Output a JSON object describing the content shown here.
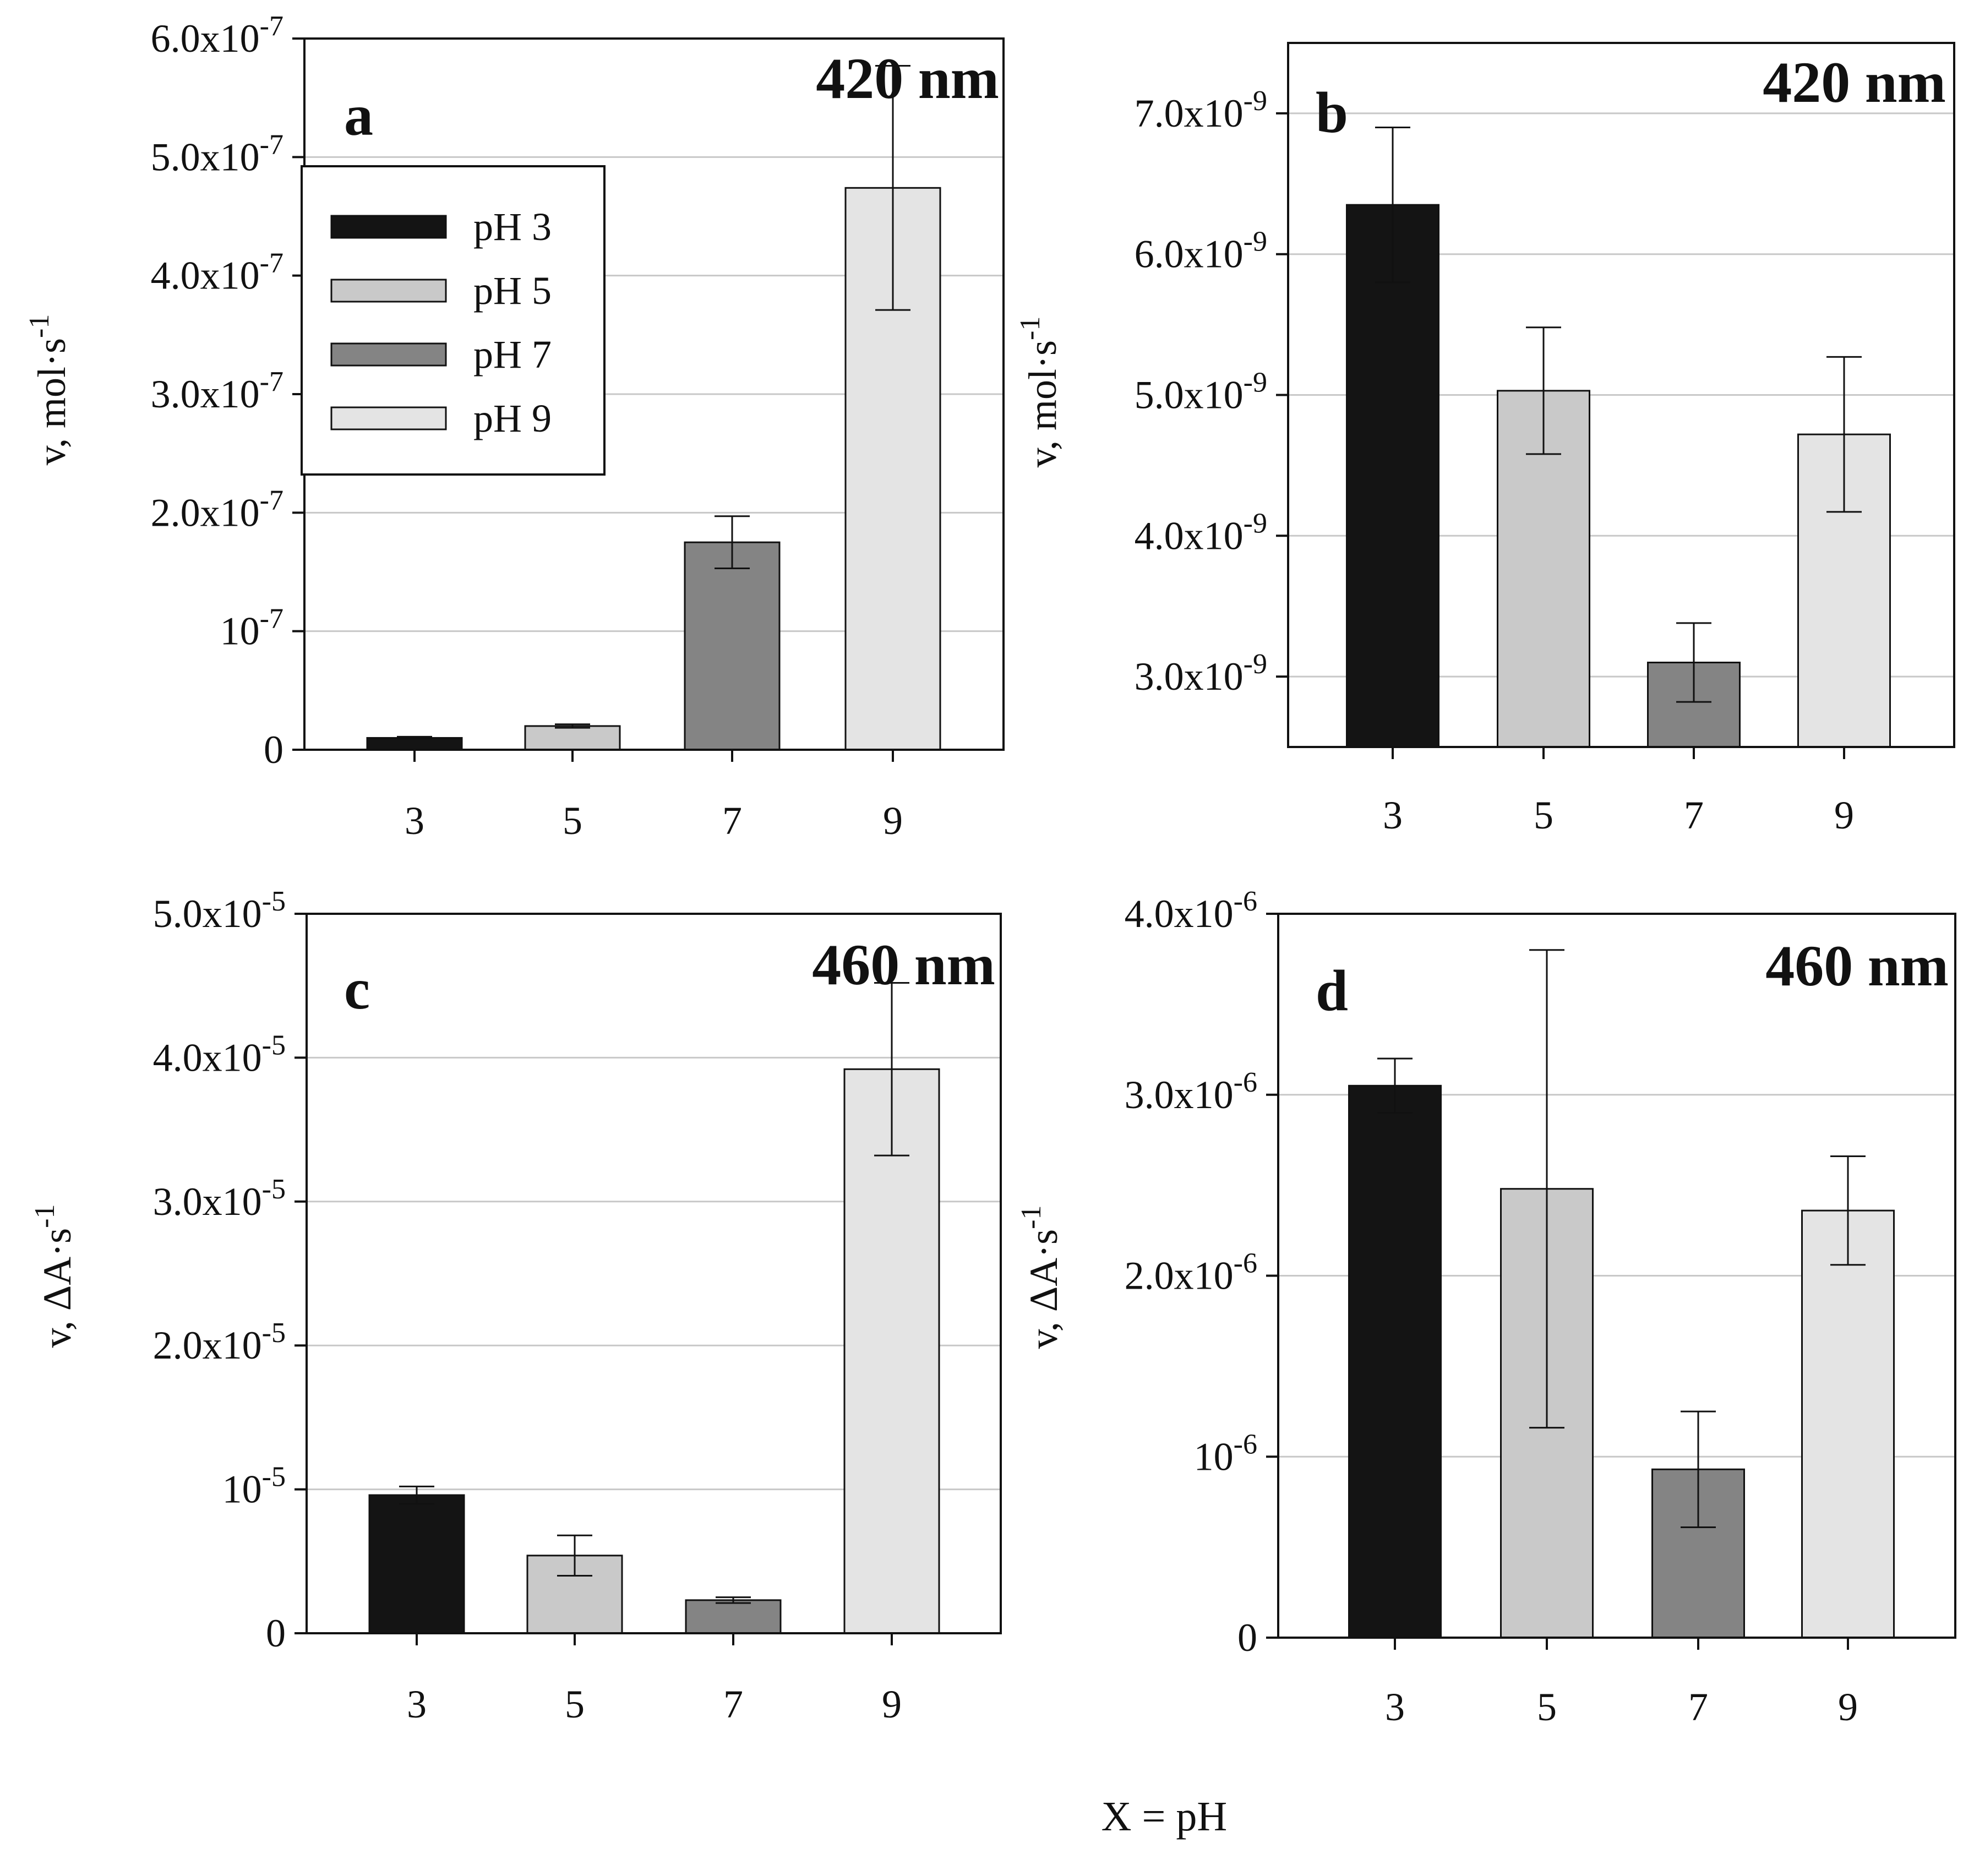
{
  "colors": {
    "pH 3": "#141414",
    "pH 5": "#c9c9c9",
    "pH 7": "#848484",
    "pH 9": "#e4e4e4",
    "grid": "#c8c8c8",
    "axis": "#111111"
  },
  "xlabel": "X = pH",
  "chart_data": [
    {
      "type": "bar",
      "panel": "a",
      "wavelength": "420 nm",
      "categories": [
        "3",
        "5",
        "7",
        "9"
      ],
      "values": [
        1e-08,
        2e-08,
        1.75e-07,
        4.74e-07
      ],
      "errors": [
        1e-09,
        1.5e-09,
        2.2e-08,
        1.03e-07
      ],
      "ylabel_main": "v, mol·s",
      "ylabel_sup": "-1",
      "ylim": [
        0,
        6e-07
      ],
      "yticks": [
        {
          "value": 0,
          "base": "0",
          "exp": ""
        },
        {
          "value": 1e-07,
          "base": "10",
          "exp": "-7"
        },
        {
          "value": 2e-07,
          "base": "2.0x10",
          "exp": "-7"
        },
        {
          "value": 3e-07,
          "base": "3.0x10",
          "exp": "-7"
        },
        {
          "value": 4e-07,
          "base": "4.0x10",
          "exp": "-7"
        },
        {
          "value": 5e-07,
          "base": "5.0x10",
          "exp": "-7"
        },
        {
          "value": 6e-07,
          "base": "6.0x10",
          "exp": "-7"
        }
      ],
      "grid": true,
      "legend": {
        "position": "upper-left",
        "entries": [
          "pH 3",
          "pH 5",
          "pH 7",
          "pH 9"
        ]
      }
    },
    {
      "type": "bar",
      "panel": "b",
      "wavelength": "420 nm",
      "categories": [
        "3",
        "5",
        "7",
        "9"
      ],
      "values": [
        6.35e-09,
        5.03e-09,
        3.1e-09,
        4.72e-09
      ],
      "errors": [
        5.5e-10,
        4.5e-10,
        2.8e-10,
        5.5e-10
      ],
      "ylabel_main": "v, mol·s",
      "ylabel_sup": "-1",
      "ylim": [
        2.5e-09,
        7.5e-09
      ],
      "yticks": [
        {
          "value": 3e-09,
          "base": "3.0x10",
          "exp": "-9"
        },
        {
          "value": 4e-09,
          "base": "4.0x10",
          "exp": "-9"
        },
        {
          "value": 5e-09,
          "base": "5.0x10",
          "exp": "-9"
        },
        {
          "value": 6e-09,
          "base": "6.0x10",
          "exp": "-9"
        },
        {
          "value": 7e-09,
          "base": "7.0x10",
          "exp": "-9"
        }
      ],
      "grid": true
    },
    {
      "type": "bar",
      "panel": "c",
      "wavelength": "460 nm",
      "categories": [
        "3",
        "5",
        "7",
        "9"
      ],
      "values": [
        9.6e-06,
        5.4e-06,
        2.3e-06,
        3.92e-05
      ],
      "errors": [
        6e-07,
        1.4e-06,
        2e-07,
        6e-06
      ],
      "ylabel_main": "v, ΔA·s",
      "ylabel_sup": "-1",
      "ylim": [
        0,
        5e-05
      ],
      "yticks": [
        {
          "value": 0,
          "base": "0",
          "exp": ""
        },
        {
          "value": 1e-05,
          "base": "10",
          "exp": "-5"
        },
        {
          "value": 2e-05,
          "base": "2.0x10",
          "exp": "-5"
        },
        {
          "value": 3e-05,
          "base": "3.0x10",
          "exp": "-5"
        },
        {
          "value": 4e-05,
          "base": "4.0x10",
          "exp": "-5"
        },
        {
          "value": 5e-05,
          "base": "5.0x10",
          "exp": "-5"
        }
      ],
      "grid": true
    },
    {
      "type": "bar",
      "panel": "d",
      "wavelength": "460 nm",
      "categories": [
        "3",
        "5",
        "7",
        "9"
      ],
      "values": [
        3.05e-06,
        2.48e-06,
        9.3e-07,
        2.36e-06
      ],
      "errors": [
        1.5e-07,
        1.32e-06,
        3.2e-07,
        3e-07
      ],
      "ylabel_main": "v, ΔA·s",
      "ylabel_sup": "-1",
      "ylim": [
        0,
        4e-06
      ],
      "yticks": [
        {
          "value": 0,
          "base": "0",
          "exp": ""
        },
        {
          "value": 1e-06,
          "base": "10",
          "exp": "-6"
        },
        {
          "value": 2e-06,
          "base": "2.0x10",
          "exp": "-6"
        },
        {
          "value": 3e-06,
          "base": "3.0x10",
          "exp": "-6"
        },
        {
          "value": 4e-06,
          "base": "4.0x10",
          "exp": "-6"
        }
      ],
      "grid": true
    }
  ]
}
